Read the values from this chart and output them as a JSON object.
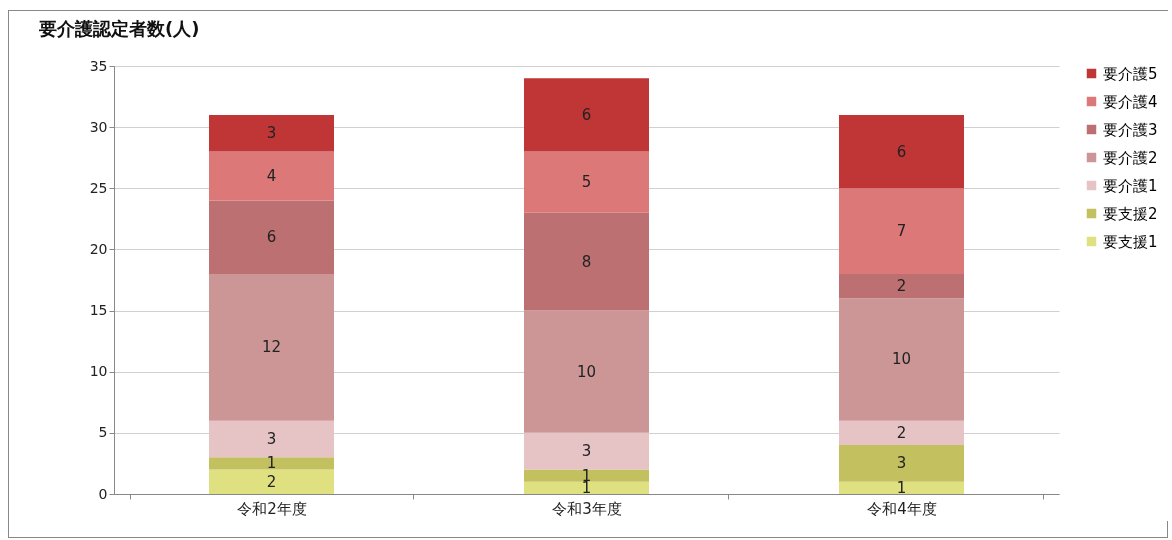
{
  "chart_data": {
    "type": "bar",
    "title": "要介護認定者数(人)",
    "categories": [
      "令和2年度",
      "令和3年度",
      "令和4年度"
    ],
    "stacked": true,
    "data_labels": true,
    "legend": "right",
    "grid": "y",
    "ylim": [
      0,
      35
    ],
    "yticks": [
      0,
      5,
      10,
      15,
      20,
      25,
      30,
      35
    ],
    "series": [
      {
        "name": "要支援1",
        "color": "#dfe080",
        "values": [
          2,
          1,
          1
        ]
      },
      {
        "name": "要支援2",
        "color": "#c3c060",
        "values": [
          1,
          1,
          3
        ]
      },
      {
        "name": "要介護1",
        "color": "#e6c3c4",
        "values": [
          3,
          3,
          2
        ]
      },
      {
        "name": "要介護2",
        "color": "#cc9696",
        "values": [
          12,
          10,
          10
        ]
      },
      {
        "name": "要介護3",
        "color": "#bd7071",
        "values": [
          6,
          8,
          2
        ]
      },
      {
        "name": "要介護4",
        "color": "#dc7878",
        "values": [
          4,
          5,
          7
        ]
      },
      {
        "name": "要介護5",
        "color": "#c03535",
        "values": [
          3,
          6,
          6
        ]
      }
    ]
  }
}
